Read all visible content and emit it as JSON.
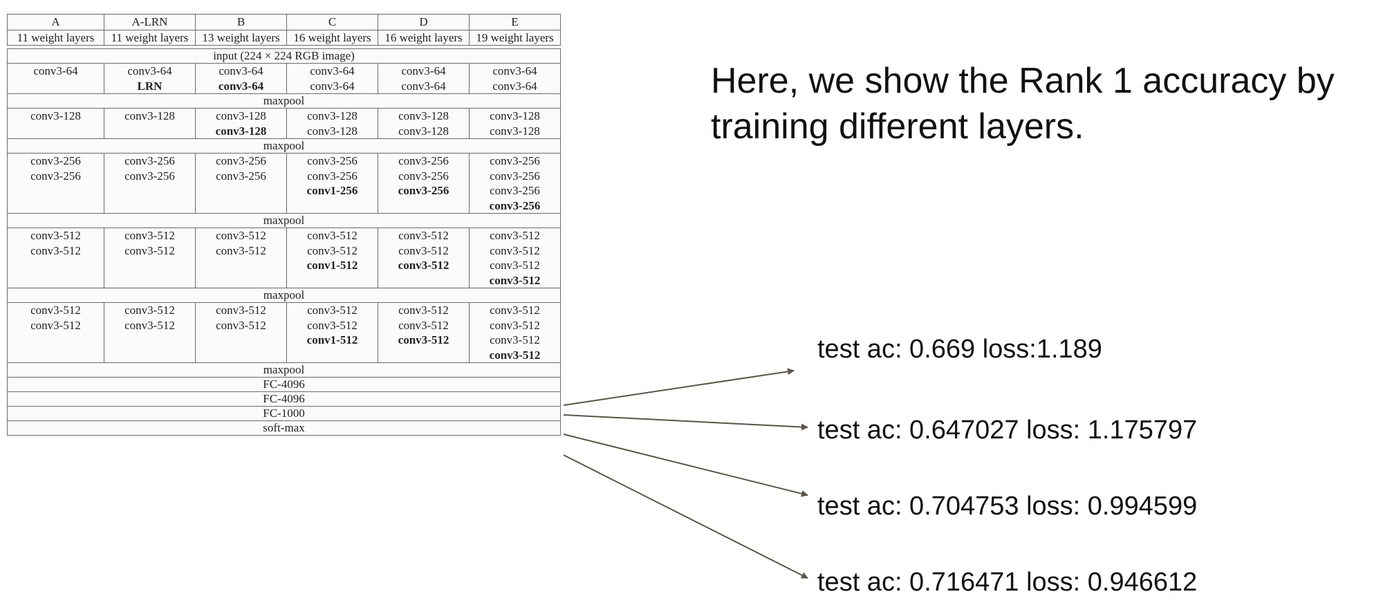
{
  "table": {
    "headers": [
      "A",
      "A-LRN",
      "B",
      "C",
      "D",
      "E"
    ],
    "subheaders": [
      "11 weight layers",
      "11 weight layers",
      "13 weight layers",
      "16 weight layers",
      "16 weight layers",
      "19 weight layers"
    ],
    "input_label": "input (224 × 224 RGB image)",
    "maxpool": "maxpool",
    "blocks": [
      [
        [
          "conv3-64"
        ],
        [
          "conv3-64",
          "LRN"
        ],
        [
          "conv3-64",
          "conv3-64"
        ],
        [
          "conv3-64",
          "conv3-64"
        ],
        [
          "conv3-64",
          "conv3-64"
        ],
        [
          "conv3-64",
          "conv3-64"
        ]
      ],
      [
        [
          "conv3-128"
        ],
        [
          "conv3-128"
        ],
        [
          "conv3-128",
          "conv3-128"
        ],
        [
          "conv3-128",
          "conv3-128"
        ],
        [
          "conv3-128",
          "conv3-128"
        ],
        [
          "conv3-128",
          "conv3-128"
        ]
      ],
      [
        [
          "conv3-256",
          "conv3-256"
        ],
        [
          "conv3-256",
          "conv3-256"
        ],
        [
          "conv3-256",
          "conv3-256"
        ],
        [
          "conv3-256",
          "conv3-256",
          "conv1-256"
        ],
        [
          "conv3-256",
          "conv3-256",
          "conv3-256"
        ],
        [
          "conv3-256",
          "conv3-256",
          "conv3-256",
          "conv3-256"
        ]
      ],
      [
        [
          "conv3-512",
          "conv3-512"
        ],
        [
          "conv3-512",
          "conv3-512"
        ],
        [
          "conv3-512",
          "conv3-512"
        ],
        [
          "conv3-512",
          "conv3-512",
          "conv1-512"
        ],
        [
          "conv3-512",
          "conv3-512",
          "conv3-512"
        ],
        [
          "conv3-512",
          "conv3-512",
          "conv3-512",
          "conv3-512"
        ]
      ],
      [
        [
          "conv3-512",
          "conv3-512"
        ],
        [
          "conv3-512",
          "conv3-512"
        ],
        [
          "conv3-512",
          "conv3-512"
        ],
        [
          "conv3-512",
          "conv3-512",
          "conv1-512"
        ],
        [
          "conv3-512",
          "conv3-512",
          "conv3-512"
        ],
        [
          "conv3-512",
          "conv3-512",
          "conv3-512",
          "conv3-512"
        ]
      ]
    ],
    "tail": [
      "maxpool",
      "FC-4096",
      "FC-4096",
      "FC-1000",
      "soft-max"
    ]
  },
  "description": "Here, we show the Rank 1 accuracy by training different layers.",
  "results": [
    "test ac: 0.669 loss:1.189",
    "test ac: 0.647027 loss: 1.175797",
    "test ac: 0.704753 loss: 0.994599",
    "test ac: 0.716471 loss: 0.946612"
  ],
  "colors": {
    "arrow": "#5a5448",
    "border": "#6a6a6a"
  }
}
